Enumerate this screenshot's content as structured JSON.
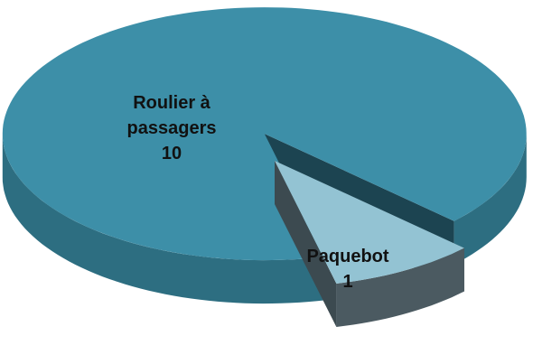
{
  "chart_data": {
    "type": "pie3d",
    "categories": [
      "Roulier à passagers",
      "Paquebot"
    ],
    "values": [
      10,
      1
    ],
    "colors": [
      "#3d8fa8",
      "#93c3d3"
    ],
    "side_colors": [
      "#2d6e81",
      "#4b5a61"
    ],
    "cut_colors": [
      "#1c4451",
      "#3c4a50"
    ]
  }
}
